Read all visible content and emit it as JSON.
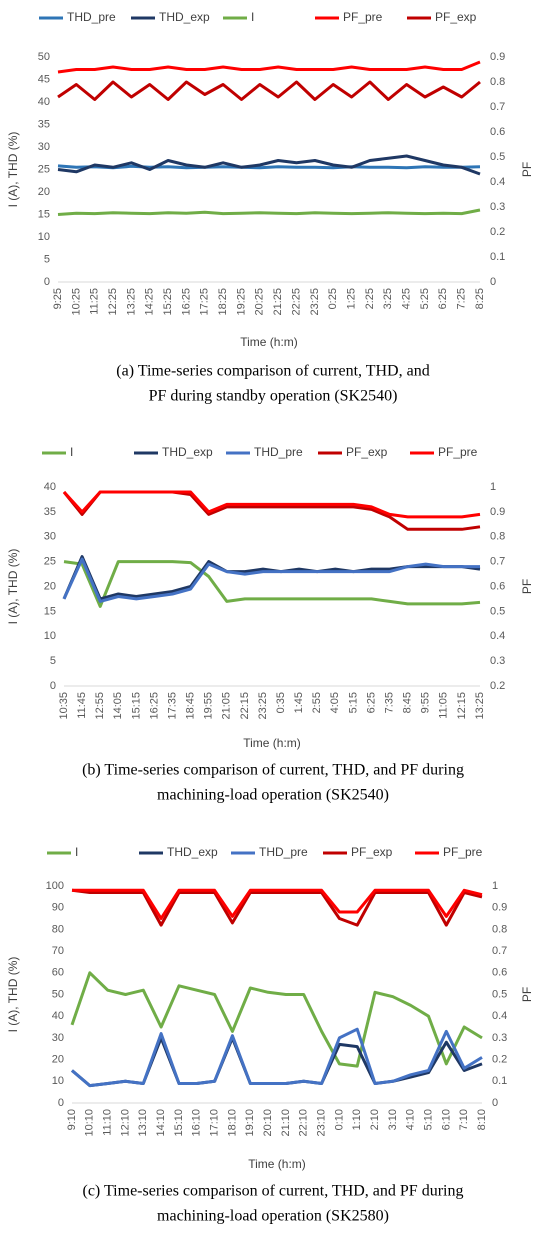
{
  "chart_data": [
    {
      "type": "line",
      "x_label": "Time (h:m)",
      "y_label": "I (A), THD (%)",
      "y2_label": "PF",
      "caption": [
        "(a) Time-series comparison of current, THD, and",
        "PF during standby operation (SK2540)"
      ],
      "categories": [
        "9:25",
        "10:25",
        "11:25",
        "12:25",
        "13:25",
        "14:25",
        "15:25",
        "16:25",
        "17:25",
        "18:25",
        "19:25",
        "20:25",
        "21:25",
        "22:25",
        "23:25",
        "0:25",
        "1:25",
        "2:25",
        "3:25",
        "4:25",
        "5:25",
        "6:25",
        "7:25",
        "8:25"
      ],
      "ylim": [
        0,
        50
      ],
      "yticks": [
        0,
        5,
        10,
        15,
        20,
        25,
        30,
        35,
        40,
        45,
        50
      ],
      "y2lim": [
        0,
        0.9
      ],
      "y2ticks": [
        0,
        0.1,
        0.2,
        0.3,
        0.4,
        0.5,
        0.6,
        0.7,
        0.8,
        0.9
      ],
      "grid": false,
      "series": [
        {
          "name": "THD_pre",
          "color": "#2e75b6",
          "values": [
            25.8,
            25.5,
            25.6,
            25.4,
            25.7,
            25.5,
            25.6,
            25.4,
            25.5,
            25.6,
            25.5,
            25.4,
            25.6,
            25.5,
            25.5,
            25.4,
            25.6,
            25.5,
            25.5,
            25.4,
            25.6,
            25.5,
            25.5,
            25.6
          ]
        },
        {
          "name": "THD_exp",
          "color": "#1f3864",
          "values": [
            25,
            24.5,
            26,
            25.5,
            26.5,
            25,
            27,
            26,
            25.5,
            26.5,
            25.5,
            26,
            27,
            26.5,
            27,
            26,
            25.5,
            27,
            27.5,
            28,
            27,
            26,
            25.5,
            24
          ]
        },
        {
          "name": "I",
          "color": "#70ad47",
          "values": [
            15,
            15.3,
            15.2,
            15.4,
            15.3,
            15.2,
            15.4,
            15.3,
            15.5,
            15.2,
            15.3,
            15.4,
            15.3,
            15.2,
            15.4,
            15.3,
            15.2,
            15.3,
            15.4,
            15.3,
            15.2,
            15.3,
            15.2,
            16
          ]
        },
        {
          "name": "PF_pre",
          "color": "#ff0000",
          "axis": "y2",
          "values": [
            0.84,
            0.85,
            0.85,
            0.86,
            0.85,
            0.85,
            0.86,
            0.85,
            0.85,
            0.86,
            0.85,
            0.85,
            0.86,
            0.85,
            0.85,
            0.85,
            0.86,
            0.85,
            0.85,
            0.85,
            0.86,
            0.85,
            0.85,
            0.88
          ]
        },
        {
          "name": "PF_exp",
          "color": "#c00000",
          "axis": "y2",
          "values": [
            0.74,
            0.79,
            0.73,
            0.8,
            0.74,
            0.79,
            0.73,
            0.8,
            0.75,
            0.79,
            0.73,
            0.79,
            0.74,
            0.8,
            0.73,
            0.79,
            0.74,
            0.8,
            0.73,
            0.79,
            0.74,
            0.78,
            0.74,
            0.8
          ]
        }
      ]
    },
    {
      "type": "line",
      "x_label": "Time (h:m)",
      "y_label": "I (A), THD (%)",
      "y2_label": "PF",
      "caption": [
        "(b) Time-series comparison of current, THD, and PF during",
        "machining-load operation (SK2540)"
      ],
      "categories": [
        "10:35",
        "11:45",
        "12:55",
        "14:05",
        "15:15",
        "16:25",
        "17:35",
        "18:45",
        "19:55",
        "21:05",
        "22:15",
        "23:25",
        "0:35",
        "1:45",
        "2:55",
        "4:05",
        "5:15",
        "6:25",
        "7:35",
        "8:45",
        "9:55",
        "11:05",
        "12:15",
        "13:25"
      ],
      "ylim": [
        0,
        40
      ],
      "yticks": [
        0,
        5,
        10,
        15,
        20,
        25,
        30,
        35,
        40
      ],
      "y2lim": [
        0.2,
        1
      ],
      "y2ticks": [
        0.2,
        0.3,
        0.4,
        0.5,
        0.6,
        0.7,
        0.8,
        0.9,
        1
      ],
      "grid": false,
      "series": [
        {
          "name": "I",
          "color": "#70ad47",
          "values": [
            25,
            24.5,
            16,
            25,
            25,
            25,
            25,
            24.8,
            22,
            17,
            17.5,
            17.5,
            17.5,
            17.5,
            17.5,
            17.5,
            17.5,
            17.5,
            17,
            16.5,
            16.5,
            16.5,
            16.5,
            16.8
          ]
        },
        {
          "name": "THD_exp",
          "color": "#1f3864",
          "values": [
            17.5,
            26,
            17.5,
            18.5,
            18,
            18.5,
            19,
            20,
            25,
            23,
            23,
            23.5,
            23,
            23.5,
            23,
            23.5,
            23,
            23.5,
            23.5,
            24,
            24,
            24,
            24,
            23.5
          ]
        },
        {
          "name": "THD_pre",
          "color": "#4472c4",
          "values": [
            17.5,
            25.5,
            17,
            18,
            17.5,
            18,
            18.5,
            19.5,
            24.5,
            23,
            22.5,
            23,
            23,
            23,
            23,
            23,
            23,
            23,
            23,
            24,
            24.5,
            24,
            24,
            24
          ]
        },
        {
          "name": "PF_exp",
          "color": "#c00000",
          "axis": "y2",
          "values": [
            0.98,
            0.89,
            0.98,
            0.98,
            0.98,
            0.98,
            0.98,
            0.97,
            0.89,
            0.92,
            0.92,
            0.92,
            0.92,
            0.92,
            0.92,
            0.92,
            0.92,
            0.91,
            0.88,
            0.83,
            0.83,
            0.83,
            0.83,
            0.84
          ]
        },
        {
          "name": "PF_pre",
          "color": "#ff0000",
          "axis": "y2",
          "values": [
            0.98,
            0.9,
            0.98,
            0.98,
            0.98,
            0.98,
            0.98,
            0.98,
            0.9,
            0.93,
            0.93,
            0.93,
            0.93,
            0.93,
            0.93,
            0.93,
            0.93,
            0.92,
            0.89,
            0.88,
            0.88,
            0.88,
            0.88,
            0.89
          ]
        }
      ]
    },
    {
      "type": "line",
      "x_label": "Time (h:m)",
      "y_label": "I (A), THD (%)",
      "y2_label": "PF",
      "caption": [
        "(c) Time-series comparison of current, THD, and PF during",
        "machining-load operation (SK2580)"
      ],
      "categories": [
        "9:10",
        "10:10",
        "11:10",
        "12:10",
        "13:10",
        "14:10",
        "15:10",
        "16:10",
        "17:10",
        "18:10",
        "19:10",
        "20:10",
        "21:10",
        "22:10",
        "23:10",
        "0:10",
        "1:10",
        "2:10",
        "3:10",
        "4:10",
        "5:10",
        "6:10",
        "7:10",
        "8:10"
      ],
      "ylim": [
        0,
        100
      ],
      "yticks": [
        0,
        10,
        20,
        30,
        40,
        50,
        60,
        70,
        80,
        90,
        100
      ],
      "y2lim": [
        0,
        1
      ],
      "y2ticks": [
        0,
        0.1,
        0.2,
        0.3,
        0.4,
        0.5,
        0.6,
        0.7,
        0.8,
        0.9,
        1
      ],
      "grid": false,
      "series": [
        {
          "name": "I",
          "color": "#70ad47",
          "values": [
            36,
            60,
            52,
            50,
            52,
            35,
            54,
            52,
            50,
            33,
            53,
            51,
            50,
            50,
            33,
            18,
            17,
            51,
            49,
            45,
            40,
            18,
            35,
            30
          ]
        },
        {
          "name": "THD_exp",
          "color": "#1f3864",
          "values": [
            15,
            8,
            9,
            10,
            9,
            30,
            9,
            9,
            10,
            30,
            9,
            9,
            9,
            10,
            9,
            27,
            26,
            9,
            10,
            12,
            14,
            28,
            15,
            18
          ]
        },
        {
          "name": "THD_pre",
          "color": "#4472c4",
          "values": [
            15,
            8,
            9,
            10,
            9,
            32,
            9,
            9,
            10,
            31,
            9,
            9,
            9,
            10,
            9,
            30,
            34,
            9,
            10,
            13,
            15,
            33,
            16,
            21
          ]
        },
        {
          "name": "PF_exp",
          "color": "#c00000",
          "axis": "y2",
          "values": [
            0.98,
            0.97,
            0.97,
            0.97,
            0.97,
            0.82,
            0.97,
            0.97,
            0.97,
            0.83,
            0.97,
            0.97,
            0.97,
            0.97,
            0.97,
            0.85,
            0.82,
            0.97,
            0.97,
            0.97,
            0.97,
            0.82,
            0.97,
            0.95
          ]
        },
        {
          "name": "PF_pre",
          "color": "#ff0000",
          "axis": "y2",
          "values": [
            0.98,
            0.98,
            0.98,
            0.98,
            0.98,
            0.85,
            0.98,
            0.98,
            0.98,
            0.86,
            0.98,
            0.98,
            0.98,
            0.98,
            0.98,
            0.88,
            0.88,
            0.98,
            0.98,
            0.98,
            0.98,
            0.86,
            0.98,
            0.96
          ]
        }
      ]
    }
  ]
}
